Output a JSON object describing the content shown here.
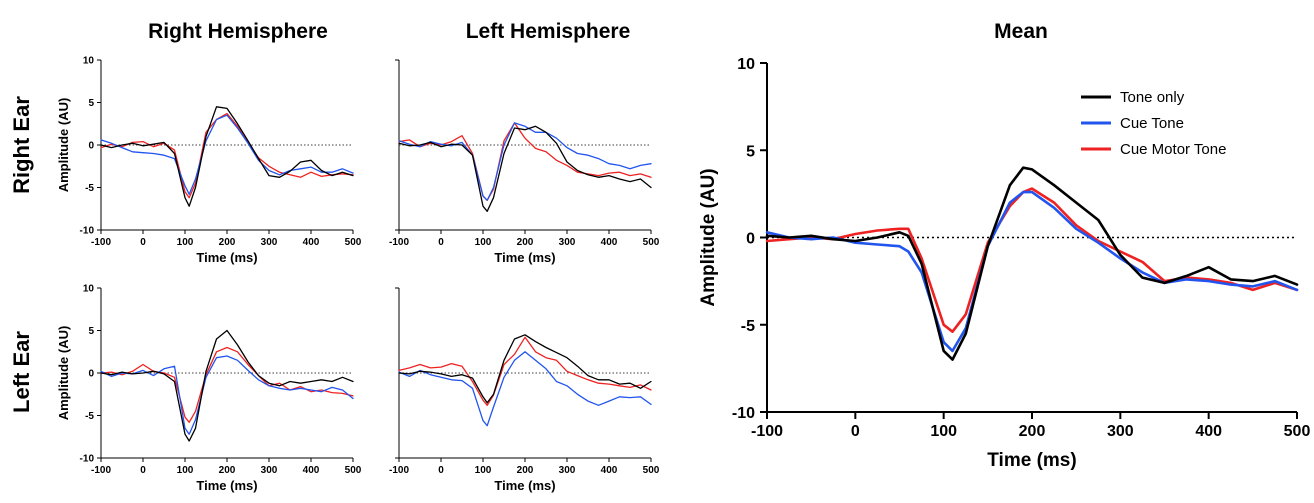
{
  "colors": {
    "Tone only": "#000000",
    "Cue Tone": "#2255ee",
    "Cue Motor Tone": "#ee2222"
  },
  "chart_data": [
    {
      "type": "line",
      "panel": "right-ear-right-hemisphere",
      "title": "Right Hemisphere",
      "row_label": "Right Ear",
      "xlabel": "Time (ms)",
      "ylabel": "Amplitude (AU)",
      "xlim": [
        -100,
        500
      ],
      "ylim": [
        -10,
        10
      ],
      "xticks": [
        -100,
        0,
        100,
        200,
        300,
        400,
        500
      ],
      "yticks": [
        -10,
        -5,
        0,
        5,
        10
      ],
      "zero_line": true,
      "x": [
        -100,
        -75,
        -50,
        -25,
        0,
        25,
        50,
        75,
        100,
        110,
        125,
        150,
        175,
        200,
        225,
        250,
        275,
        300,
        325,
        350,
        375,
        400,
        425,
        450,
        475,
        500
      ],
      "series": [
        {
          "name": "Tone only",
          "values": [
            0,
            -0.3,
            0,
            0.2,
            -0.1,
            0.1,
            0.3,
            -1,
            -6.2,
            -7.2,
            -5,
            1,
            4.5,
            4.3,
            2.5,
            0.5,
            -1.6,
            -3.6,
            -3.8,
            -3.1,
            -2,
            -1.8,
            -3,
            -3.6,
            -3.2,
            -3.6
          ]
        },
        {
          "name": "Cue Tone",
          "values": [
            0.6,
            0.2,
            -0.3,
            -0.8,
            -0.9,
            -1,
            -1.2,
            -1.6,
            -4.8,
            -5.8,
            -4,
            0.5,
            3,
            3.5,
            2,
            0.2,
            -1.8,
            -3,
            -3.5,
            -3,
            -2.8,
            -2.6,
            -3.2,
            -3.2,
            -2.8,
            -3.3
          ]
        },
        {
          "name": "Cue Motor Tone",
          "values": [
            -0.3,
            0.1,
            -0.2,
            0.3,
            0.4,
            -0.2,
            0.2,
            -0.6,
            -5.5,
            -6.2,
            -4.5,
            1.5,
            3,
            3.7,
            2.2,
            0.3,
            -1.5,
            -2.5,
            -3.2,
            -3.5,
            -3.8,
            -3.2,
            -3.7,
            -3.5,
            -3.4,
            -3.5
          ]
        }
      ]
    },
    {
      "type": "line",
      "panel": "right-ear-left-hemisphere",
      "title": "Left Hemisphere",
      "xlabel": "Time (ms)",
      "ylabel": "",
      "xlim": [
        -100,
        500
      ],
      "ylim": [
        -10,
        10
      ],
      "xticks": [
        -100,
        0,
        100,
        200,
        300,
        400,
        500
      ],
      "yticks": [],
      "zero_line": true,
      "x": [
        -100,
        -75,
        -50,
        -25,
        0,
        25,
        50,
        75,
        100,
        110,
        125,
        150,
        175,
        200,
        225,
        250,
        275,
        300,
        325,
        350,
        375,
        400,
        425,
        450,
        475,
        500
      ],
      "series": [
        {
          "name": "Tone only",
          "values": [
            0.2,
            -0.1,
            0,
            0.3,
            -0.2,
            0.1,
            0,
            -1.2,
            -7.2,
            -7.8,
            -6.2,
            -1,
            2,
            1.8,
            2.2,
            1.5,
            0.2,
            -2,
            -3,
            -3.5,
            -3.8,
            -3.6,
            -4,
            -4.3,
            -4,
            -5
          ]
        },
        {
          "name": "Cue Tone",
          "values": [
            0.5,
            0.1,
            -0.2,
            0.4,
            0.1,
            -0.1,
            0.3,
            -1.2,
            -6,
            -6.5,
            -5,
            0,
            2.6,
            2.2,
            1.5,
            1.5,
            0.8,
            -0.3,
            -1,
            -1.2,
            -1.6,
            -2.2,
            -2.4,
            -2.8,
            -2.4,
            -2.2
          ]
        },
        {
          "name": "Cue Motor Tone",
          "values": [
            0.4,
            0.6,
            -0.2,
            0.2,
            0,
            0.4,
            1.1,
            -1,
            -6,
            -6.5,
            -5.2,
            0.5,
            2.6,
            0.8,
            -0.4,
            -0.8,
            -1.8,
            -2.4,
            -3.2,
            -3.4,
            -3.6,
            -3.3,
            -3.2,
            -3.6,
            -3.4,
            -3.8
          ]
        }
      ]
    },
    {
      "type": "line",
      "panel": "left-ear-right-hemisphere",
      "row_label": "Left Ear",
      "xlabel": "Time (ms)",
      "ylabel": "Amplitude (AU)",
      "xlim": [
        -100,
        500
      ],
      "ylim": [
        -10,
        10
      ],
      "xticks": [
        -100,
        0,
        100,
        200,
        300,
        400,
        500
      ],
      "yticks": [
        -10,
        -5,
        0,
        5,
        10
      ],
      "zero_line": true,
      "x": [
        -100,
        -75,
        -50,
        -25,
        0,
        25,
        50,
        75,
        100,
        110,
        125,
        150,
        175,
        200,
        225,
        250,
        275,
        300,
        325,
        350,
        375,
        400,
        425,
        450,
        475,
        500
      ],
      "series": [
        {
          "name": "Tone only",
          "values": [
            0,
            -0.2,
            0.1,
            -0.1,
            0,
            0.2,
            -0.1,
            -1,
            -7.2,
            -8,
            -6.5,
            0.2,
            4,
            5,
            3.3,
            1.3,
            -0.3,
            -1.2,
            -1.5,
            -1,
            -1.2,
            -1,
            -0.8,
            -1,
            -0.5,
            -1
          ]
        },
        {
          "name": "Cue Tone",
          "values": [
            0.2,
            -0.4,
            0,
            -0.1,
            0.3,
            -0.3,
            0.5,
            0.8,
            -6.5,
            -7.2,
            -5.5,
            -0.5,
            1.8,
            2,
            1.5,
            0.3,
            -0.8,
            -1.5,
            -1.8,
            -2,
            -1.8,
            -2,
            -2.2,
            -1.7,
            -2,
            -3
          ]
        },
        {
          "name": "Cue Motor Tone",
          "values": [
            0,
            0.1,
            -0.2,
            0.2,
            1,
            0.2,
            0,
            -0.5,
            -5.2,
            -5.8,
            -4.5,
            -0.2,
            2.5,
            3,
            2.5,
            1,
            -0.3,
            -1.5,
            -1.2,
            -2,
            -1.6,
            -2.2,
            -2,
            -2.3,
            -2.4,
            -2.7
          ]
        }
      ]
    },
    {
      "type": "line",
      "panel": "left-ear-left-hemisphere",
      "xlabel": "Time (ms)",
      "ylabel": "",
      "xlim": [
        -100,
        500
      ],
      "ylim": [
        -10,
        10
      ],
      "xticks": [
        -100,
        0,
        100,
        200,
        300,
        400,
        500
      ],
      "yticks": [],
      "zero_line": true,
      "x": [
        -100,
        -75,
        -50,
        -25,
        0,
        25,
        50,
        75,
        100,
        110,
        125,
        150,
        175,
        200,
        225,
        250,
        275,
        300,
        325,
        350,
        375,
        400,
        425,
        450,
        475,
        500
      ],
      "series": [
        {
          "name": "Tone only",
          "values": [
            0,
            -0.1,
            0.2,
            0.1,
            -0.1,
            -0.4,
            -0.2,
            -0.6,
            -2.8,
            -3.5,
            -2.5,
            1.5,
            4,
            4.5,
            3.7,
            3,
            2.4,
            1.8,
            0.8,
            -0.3,
            -0.8,
            -0.8,
            -1.3,
            -1.2,
            -1.8,
            -1
          ]
        },
        {
          "name": "Cue Tone",
          "values": [
            0.1,
            -0.4,
            0.3,
            -0.2,
            -0.5,
            -0.8,
            -0.9,
            -1.8,
            -5.6,
            -6.2,
            -4,
            -0.5,
            1.5,
            2.5,
            1.5,
            0.5,
            -1,
            -1.5,
            -2.5,
            -3.3,
            -3.8,
            -3.3,
            -2.8,
            -2.9,
            -2.8,
            -3.7
          ]
        },
        {
          "name": "Cue Motor Tone",
          "values": [
            0.3,
            0.6,
            1,
            0.6,
            0.7,
            1.1,
            0.8,
            -1,
            -3.2,
            -3.8,
            -2.6,
            1,
            2.2,
            4.2,
            2.5,
            1.8,
            1.5,
            0.2,
            -0.3,
            -0.8,
            -1.2,
            -1.3,
            -1.5,
            -1.7,
            -1.4,
            -2
          ]
        }
      ]
    },
    {
      "type": "line",
      "panel": "mean",
      "title": "Mean",
      "xlabel": "Time (ms)",
      "ylabel": "Amplitude (AU)",
      "xlim": [
        -100,
        500
      ],
      "ylim": [
        -10,
        10
      ],
      "xticks": [
        -100,
        0,
        100,
        200,
        300,
        400,
        500
      ],
      "yticks": [
        -10,
        -5,
        0,
        5,
        10
      ],
      "zero_line": true,
      "legend": {
        "placement": "top-right",
        "entries": [
          "Tone only",
          "Cue Tone",
          "Cue Motor Tone"
        ]
      },
      "x": [
        -100,
        -75,
        -50,
        -25,
        0,
        25,
        50,
        60,
        75,
        100,
        110,
        125,
        150,
        175,
        190,
        200,
        225,
        250,
        275,
        300,
        325,
        350,
        375,
        400,
        425,
        450,
        475,
        500
      ],
      "series": [
        {
          "name": "Tone only",
          "values": [
            0.1,
            0,
            0.1,
            -0.1,
            -0.2,
            0,
            0.3,
            0.1,
            -1.5,
            -6.5,
            -7,
            -5.5,
            -0.5,
            3,
            4,
            3.9,
            3,
            2,
            1,
            -1,
            -2.3,
            -2.6,
            -2.2,
            -1.7,
            -2.4,
            -2.5,
            -2.2,
            -2.7
          ]
        },
        {
          "name": "Cue Tone",
          "values": [
            0.3,
            0,
            -0.1,
            0,
            -0.3,
            -0.4,
            -0.5,
            -0.8,
            -2,
            -6,
            -6.5,
            -5.2,
            -0.5,
            2,
            2.6,
            2.6,
            1.7,
            0.5,
            -0.3,
            -1.2,
            -2,
            -2.6,
            -2.4,
            -2.5,
            -2.7,
            -2.8,
            -2.5,
            -3
          ]
        },
        {
          "name": "Cue Motor Tone",
          "values": [
            -0.2,
            -0.1,
            0,
            -0.1,
            0.2,
            0.4,
            0.5,
            0.5,
            -1.2,
            -5,
            -5.4,
            -4.4,
            -0.3,
            1.8,
            2.6,
            2.8,
            2,
            0.7,
            -0.2,
            -0.8,
            -1.4,
            -2.5,
            -2.3,
            -2.4,
            -2.6,
            -3,
            -2.6,
            -3
          ]
        }
      ]
    }
  ]
}
